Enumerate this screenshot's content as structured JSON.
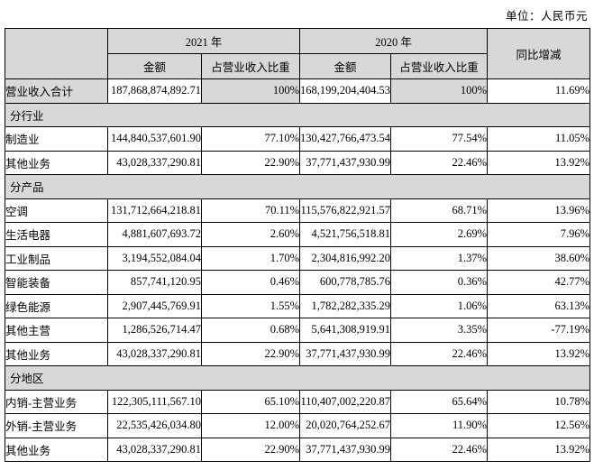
{
  "unit_label": "单位：人民币元",
  "table": {
    "header": {
      "year_2021": "2021 年",
      "year_2020": "2020 年",
      "yoy": "同比增减",
      "amount": "金额",
      "share": "占营业收入比重"
    },
    "rows": [
      {
        "kind": "data",
        "shaded": true,
        "label": "营业收入合计",
        "amount_2021": "187,868,874,892.71",
        "share_2021": "100%",
        "amount_2020": "168,199,204,404.53",
        "share_2020": "100%",
        "yoy": "11.69%"
      },
      {
        "kind": "section",
        "label": "分行业"
      },
      {
        "kind": "data",
        "label": "制造业",
        "amount_2021": "144,840,537,601.90",
        "share_2021": "77.10%",
        "amount_2020": "130,427,766,473.54",
        "share_2020": "77.54%",
        "yoy": "11.05%"
      },
      {
        "kind": "data",
        "label": "其他业务",
        "amount_2021": "43,028,337,290.81",
        "share_2021": "22.90%",
        "amount_2020": "37,771,437,930.99",
        "share_2020": "22.46%",
        "yoy": "13.92%"
      },
      {
        "kind": "section",
        "label": "分产品"
      },
      {
        "kind": "data",
        "label": "空调",
        "amount_2021": "131,712,664,218.81",
        "share_2021": "70.11%",
        "amount_2020": "115,576,822,921.57",
        "share_2020": "68.71%",
        "yoy": "13.96%"
      },
      {
        "kind": "data",
        "label": "生活电器",
        "amount_2021": "4,881,607,693.72",
        "share_2021": "2.60%",
        "amount_2020": "4,521,756,518.81",
        "share_2020": "2.69%",
        "yoy": "7.96%"
      },
      {
        "kind": "data",
        "label": "工业制品",
        "amount_2021": "3,194,552,084.04",
        "share_2021": "1.70%",
        "amount_2020": "2,304,816,992.20",
        "share_2020": "1.37%",
        "yoy": "38.60%"
      },
      {
        "kind": "data",
        "label": "智能装备",
        "amount_2021": "857,741,120.95",
        "share_2021": "0.46%",
        "amount_2020": "600,778,785.76",
        "share_2020": "0.36%",
        "yoy": "42.77%"
      },
      {
        "kind": "data",
        "label": "绿色能源",
        "amount_2021": "2,907,445,769.91",
        "share_2021": "1.55%",
        "amount_2020": "1,782,282,335.29",
        "share_2020": "1.06%",
        "yoy": "63.13%"
      },
      {
        "kind": "data",
        "label": "其他主营",
        "amount_2021": "1,286,526,714.47",
        "share_2021": "0.68%",
        "amount_2020": "5,641,308,919.91",
        "share_2020": "3.35%",
        "yoy": "-77.19%"
      },
      {
        "kind": "data",
        "label": "其他业务",
        "amount_2021": "43,028,337,290.81",
        "share_2021": "22.90%",
        "amount_2020": "37,771,437,930.99",
        "share_2020": "22.46%",
        "yoy": "13.92%"
      },
      {
        "kind": "section",
        "label": "分地区"
      },
      {
        "kind": "data",
        "label": "内销-主营业务",
        "amount_2021": "122,305,111,567.10",
        "share_2021": "65.10%",
        "amount_2020": "110,407,002,220.87",
        "share_2020": "65.64%",
        "yoy": "10.78%"
      },
      {
        "kind": "data",
        "label": "外销-主营业务",
        "amount_2021": "22,535,426,034.80",
        "share_2021": "12.00%",
        "amount_2020": "20,020,764,252.67",
        "share_2020": "11.90%",
        "yoy": "12.56%"
      },
      {
        "kind": "data",
        "label": "其他业务",
        "amount_2021": "43,028,337,290.81",
        "share_2021": "22.90%",
        "amount_2020": "37,771,437,930.99",
        "share_2020": "22.46%",
        "yoy": "13.92%"
      }
    ]
  }
}
